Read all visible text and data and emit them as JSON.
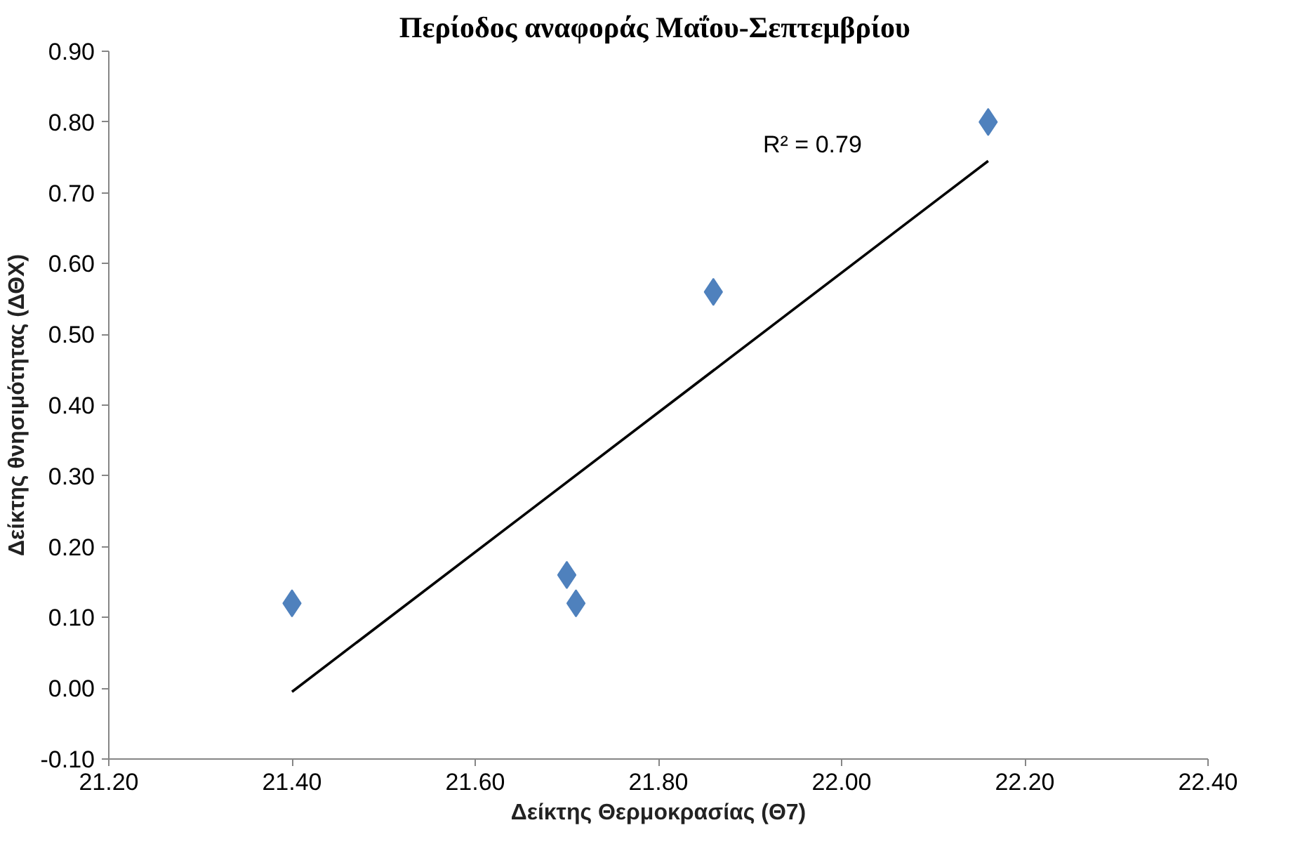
{
  "chart_data": {
    "type": "scatter",
    "title": "Περίοδος αναφοράς  Μαΐου-Σεπτεμβρίου",
    "xlabel": "Δείκτης Θερμοκρασίας (Θ7)",
    "ylabel": "Δείκτης θνησιμότητας (ΔΘΧ)",
    "series": [
      {
        "marker": "diamond",
        "color": "#4f81bd",
        "x": [
          21.4,
          21.7,
          21.71,
          21.86,
          22.16
        ],
        "values": [
          0.12,
          0.16,
          0.12,
          0.56,
          0.8
        ]
      },
      {
        "type": "line",
        "marker": "none",
        "color": "#000000",
        "x": [
          21.4,
          22.16
        ],
        "values": [
          -0.005,
          0.745
        ]
      }
    ],
    "annotations": [
      "R² = 0.79"
    ],
    "grid": false,
    "xlim": [
      21.2,
      22.4
    ],
    "xticks": [
      {
        "value": 21.2,
        "label": "21.20"
      },
      {
        "value": 21.4,
        "label": "21.40"
      },
      {
        "value": 21.6,
        "label": "21.60"
      },
      {
        "value": 21.8,
        "label": "21.80"
      },
      {
        "value": 22.0,
        "label": "22.00"
      },
      {
        "value": 22.2,
        "label": "22.20"
      },
      {
        "value": 22.4,
        "label": "22.40"
      }
    ],
    "ylim": [
      -0.1,
      0.9
    ],
    "yticks": [
      {
        "value": -0.1,
        "label": "-0.10"
      },
      {
        "value": 0,
        "label": "0.00"
      },
      {
        "value": 0.1,
        "label": "0.10"
      },
      {
        "value": 0.2,
        "label": "0.20"
      },
      {
        "value": 0.3,
        "label": "0.30"
      },
      {
        "value": 0.4,
        "label": "0.40"
      },
      {
        "value": 0.5,
        "label": "0.50"
      },
      {
        "value": 0.6,
        "label": "0.60"
      },
      {
        "value": 0.7,
        "label": "0.70"
      },
      {
        "value": 0.8,
        "label": "0.80"
      },
      {
        "value": 0.9,
        "label": "0.90"
      }
    ]
  }
}
